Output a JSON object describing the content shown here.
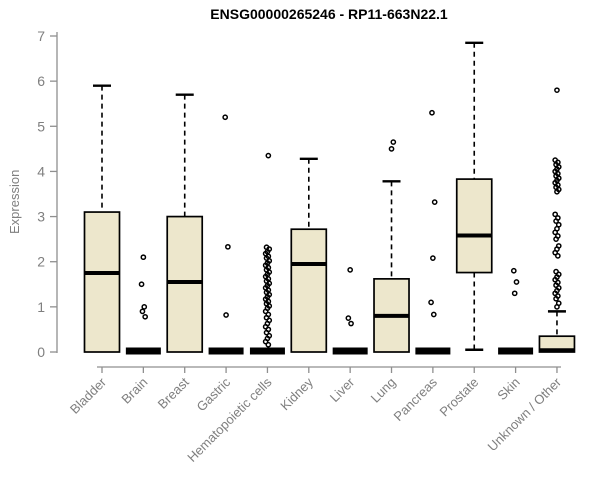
{
  "chart_data": {
    "type": "boxplot",
    "title": "ENSG00000265246 - RP11-663N22.1",
    "ylabel": "Expression",
    "ylim": [
      0,
      7
    ],
    "yticks": [
      0,
      1,
      2,
      3,
      4,
      5,
      6,
      7
    ],
    "grid": false,
    "legend": "none",
    "categories": [
      "Bladder",
      "Brain",
      "Breast",
      "Gastric",
      "Hematopoietic cells",
      "Kidney",
      "Liver",
      "Lung",
      "Pancreas",
      "Prostate",
      "Skin",
      "Unknown / Other"
    ],
    "series": [
      {
        "name": "Bladder",
        "low": 0,
        "q1": 0,
        "median": 1.75,
        "q3": 3.1,
        "high": 5.9,
        "outliers": []
      },
      {
        "name": "Brain",
        "low": 0,
        "q1": 0,
        "median": 0.02,
        "q3": 0.05,
        "high": 0.05,
        "outliers": [
          2.1,
          1.5,
          1.0,
          0.9,
          0.78
        ]
      },
      {
        "name": "Breast",
        "low": 0,
        "q1": 0,
        "median": 1.55,
        "q3": 3.0,
        "high": 5.7,
        "outliers": []
      },
      {
        "name": "Gastric",
        "low": 0,
        "q1": 0,
        "median": 0.02,
        "q3": 0.05,
        "high": 0.05,
        "outliers": [
          5.2,
          2.33,
          0.82
        ]
      },
      {
        "name": "Hematopoietic cells",
        "low": 0,
        "q1": 0,
        "median": 0.02,
        "q3": 0.05,
        "high": 0.05,
        "outliers": [
          4.35,
          2.32,
          2.28,
          2.22,
          2.18,
          2.12,
          2.08,
          2.02,
          1.97,
          1.92,
          1.87,
          1.82,
          1.77,
          1.72,
          1.67,
          1.62,
          1.57,
          1.52,
          1.47,
          1.42,
          1.37,
          1.32,
          1.27,
          1.22,
          1.17,
          1.12,
          1.07,
          1.02,
          0.97,
          0.9,
          0.83,
          0.76,
          0.7,
          0.63,
          0.56,
          0.5,
          0.43,
          0.36,
          0.3,
          0.23,
          0.16
        ]
      },
      {
        "name": "Kidney",
        "low": 0,
        "q1": 0,
        "median": 1.95,
        "q3": 2.72,
        "high": 4.28,
        "outliers": []
      },
      {
        "name": "Liver",
        "low": 0,
        "q1": 0,
        "median": 0.02,
        "q3": 0.05,
        "high": 0.05,
        "outliers": [
          1.82,
          0.75,
          0.63
        ]
      },
      {
        "name": "Lung",
        "low": 0,
        "q1": 0,
        "median": 0.8,
        "q3": 1.62,
        "high": 3.78,
        "outliers": [
          4.65,
          4.5
        ]
      },
      {
        "name": "Pancreas",
        "low": 0,
        "q1": 0,
        "median": 0.02,
        "q3": 0.05,
        "high": 0.05,
        "outliers": [
          5.3,
          3.32,
          2.08,
          1.1,
          0.83
        ]
      },
      {
        "name": "Prostate",
        "low": 0.05,
        "q1": 1.76,
        "median": 2.58,
        "q3": 3.83,
        "high": 6.85,
        "outliers": []
      },
      {
        "name": "Skin",
        "low": 0,
        "q1": 0,
        "median": 0.02,
        "q3": 0.05,
        "high": 0.05,
        "outliers": [
          1.8,
          1.55,
          1.3
        ]
      },
      {
        "name": "Unknown / Other",
        "low": 0,
        "q1": 0,
        "median": 0.04,
        "q3": 0.35,
        "high": 0.9,
        "outliers": [
          5.8,
          4.25,
          4.2,
          4.15,
          4.1,
          4.05,
          4.0,
          3.95,
          3.9,
          3.85,
          3.8,
          3.75,
          3.7,
          3.65,
          3.6,
          3.55,
          3.05,
          2.97,
          2.9,
          2.82,
          2.73,
          2.65,
          2.57,
          2.5,
          2.35,
          2.28,
          2.2,
          2.13,
          1.78,
          1.72,
          1.66,
          1.6,
          1.54,
          1.48,
          1.42,
          1.36,
          1.3,
          1.24,
          1.18,
          1.08,
          1.0
        ]
      }
    ],
    "colors": {
      "box_fill": "#EDE7CC",
      "box_stroke": "#000000",
      "axis": "#8F8F8F",
      "label": "#7F7F7F",
      "title": "#000000"
    }
  }
}
